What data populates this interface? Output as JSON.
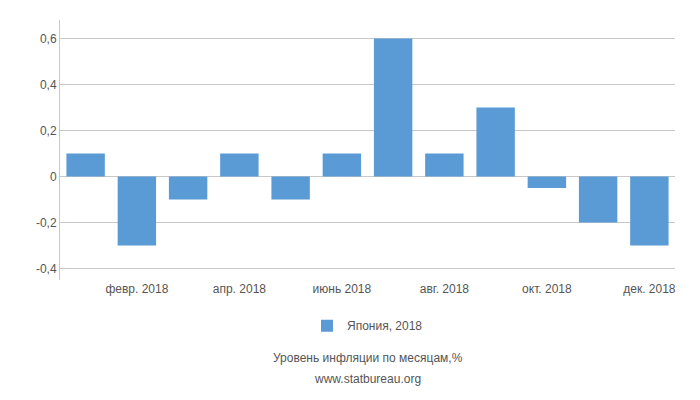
{
  "chart_data": {
    "type": "bar",
    "categories": [
      null,
      "февр. 2018",
      null,
      "апр. 2018",
      null,
      "июнь 2018",
      null,
      "авг. 2018",
      null,
      "окт. 2018",
      null,
      "дек. 2018"
    ],
    "series": [
      {
        "name": "Япония, 2018",
        "color": "#5B9BD5",
        "values": [
          0.1,
          -0.3,
          -0.1,
          0.1,
          -0.1,
          0.1,
          0.6,
          0.1,
          0.3,
          -0.05,
          -0.2,
          -0.3
        ]
      }
    ],
    "ylim": [
      -0.45,
      0.68
    ],
    "yticks": [
      {
        "value": -0.4,
        "label": "-0,4"
      },
      {
        "value": -0.2,
        "label": "-0,2"
      },
      0,
      {
        "value": 0.2,
        "label": "0,2"
      },
      {
        "value": 0.4,
        "label": "0,4"
      },
      {
        "value": 0.6,
        "label": "0,6"
      }
    ],
    "grid": true,
    "legend": "bottom",
    "subtitle": "Уровень инфляции по месяцам,%",
    "annotations": [
      "www.statbureau.org"
    ]
  }
}
